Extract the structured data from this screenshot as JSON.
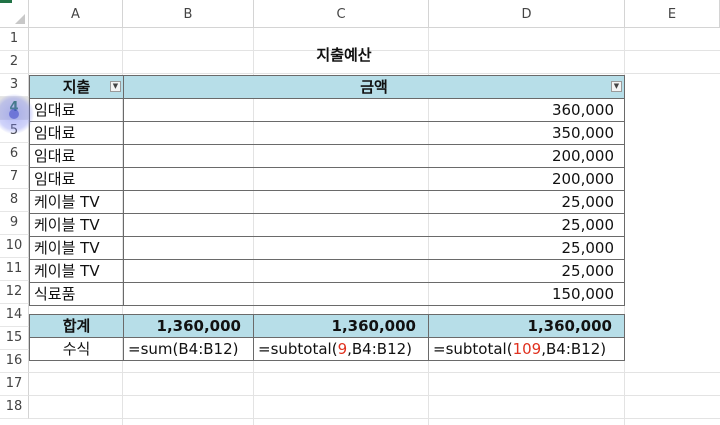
{
  "columns": [
    "A",
    "B",
    "C",
    "D",
    "E"
  ],
  "rows": [
    "1",
    "2",
    "3",
    "4",
    "5",
    "6",
    "7",
    "8",
    "9",
    "10",
    "11",
    "12",
    "14",
    "15",
    "16",
    "17",
    "18"
  ],
  "selected_row": "4",
  "title": "지출예산",
  "headers": {
    "col_a": "지출",
    "col_b_merged": "금액"
  },
  "items": [
    {
      "label": "임대료",
      "amount": "360,000"
    },
    {
      "label": "임대료",
      "amount": "350,000"
    },
    {
      "label": "임대료",
      "amount": "200,000"
    },
    {
      "label": "임대료",
      "amount": "200,000"
    },
    {
      "label": "케이블 TV",
      "amount": "25,000"
    },
    {
      "label": "케이블 TV",
      "amount": "25,000"
    },
    {
      "label": "케이블 TV",
      "amount": "25,000"
    },
    {
      "label": "케이블 TV",
      "amount": "25,000"
    },
    {
      "label": "식료품",
      "amount": "150,000"
    }
  ],
  "total_row": {
    "label": "합계",
    "sum": "1,360,000",
    "subtotal9": "1,360,000",
    "subtotal109": "1,360,000"
  },
  "formula_row": {
    "label": "수식",
    "sum": "=sum(B4:B12)",
    "sub9_prefix": "=subtotal(",
    "sub9_arg": "9",
    "sub9_suffix": ",B4:B12)",
    "sub109_prefix": "=subtotal(",
    "sub109_arg": "109",
    "sub109_suffix": ",B4:B12)"
  },
  "colors": {
    "header_fill": "#b7dee8",
    "arg_highlight": "#e0311f",
    "selection": "#217346"
  }
}
